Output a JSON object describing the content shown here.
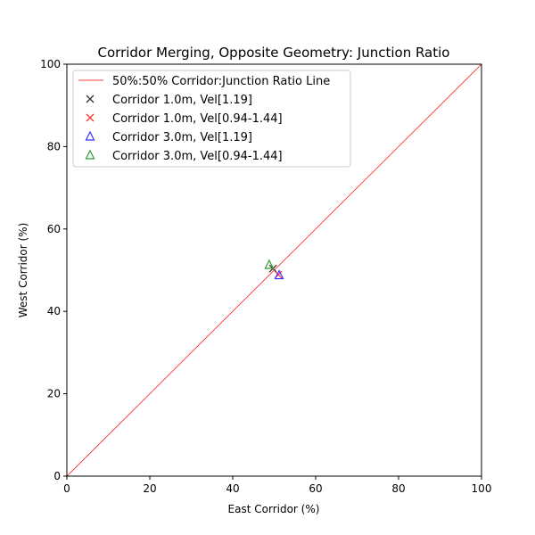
{
  "chart_data": {
    "type": "scatter",
    "title": "Corridor Merging, Opposite Geometry: Junction Ratio",
    "xlabel": "East Corridor (%)",
    "ylabel": "West Corridor (%)",
    "xlim": [
      0,
      100
    ],
    "ylim": [
      0,
      100
    ],
    "xticks": [
      "0",
      "20",
      "40",
      "60",
      "80",
      "100"
    ],
    "yticks": [
      "0",
      "20",
      "40",
      "60",
      "80",
      "100"
    ],
    "grid": false,
    "legend_position": "top-left",
    "reference_line": {
      "name": "50%:50% Corridor:Junction Ratio Line",
      "x": [
        0,
        100
      ],
      "y": [
        0,
        100
      ],
      "color": "#ff0000"
    },
    "series": [
      {
        "name": "Corridor 1.0m, Vel[1.19]",
        "marker": "x",
        "color": "#333333",
        "x": [
          49.7
        ],
        "y": [
          50.4
        ]
      },
      {
        "name": "Corridor 1.0m, Vel[0.94-1.44]",
        "marker": "x",
        "color": "#ff3333",
        "x": [
          51.0
        ],
        "y": [
          48.9
        ]
      },
      {
        "name": "Corridor 3.0m, Vel[1.19]",
        "marker": "triangle",
        "color": "#3333ff",
        "x": [
          51.2
        ],
        "y": [
          48.8
        ]
      },
      {
        "name": "Corridor 3.0m, Vel[0.94-1.44]",
        "marker": "triangle",
        "color": "#339933",
        "x": [
          48.8
        ],
        "y": [
          51.3
        ]
      }
    ]
  }
}
